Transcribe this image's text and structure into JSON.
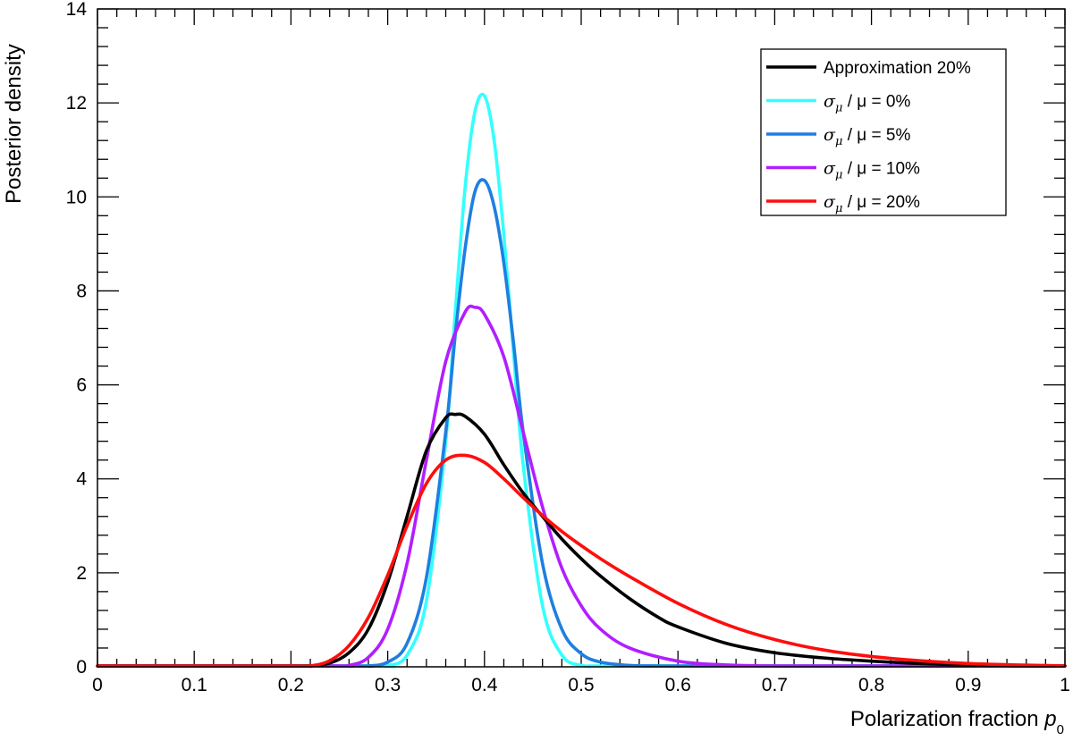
{
  "chart_data": {
    "type": "line",
    "xlabel": "Polarization fraction p",
    "xlabel_main": "Polarization fraction ",
    "xlabel_var": "p",
    "xlabel_sub": "0",
    "ylabel": "Posterior density",
    "xlim": [
      0,
      1
    ],
    "ylim": [
      0,
      14
    ],
    "x_ticks": [
      "0",
      "0.1",
      "0.2",
      "0.3",
      "0.4",
      "0.5",
      "0.6",
      "0.7",
      "0.8",
      "0.9",
      "1"
    ],
    "y_ticks": [
      "0",
      "2",
      "4",
      "6",
      "8",
      "10",
      "12",
      "14"
    ],
    "legend_position": "top-right",
    "legend_fontsize": 19,
    "series": [
      {
        "name": "Approximation 20%",
        "label_parts": {
          "text": "Approximation 20%"
        },
        "color": "#000000",
        "x": [
          0.2,
          0.22,
          0.24,
          0.26,
          0.28,
          0.3,
          0.32,
          0.34,
          0.36,
          0.37,
          0.38,
          0.4,
          0.42,
          0.44,
          0.46,
          0.48,
          0.5,
          0.52,
          0.55,
          0.58,
          0.6,
          0.65,
          0.7,
          0.75,
          0.8,
          0.85,
          0.9,
          0.95,
          1.0
        ],
        "y": [
          0.0,
          0.02,
          0.08,
          0.3,
          0.8,
          1.8,
          3.2,
          4.6,
          5.3,
          5.37,
          5.33,
          4.95,
          4.3,
          3.7,
          3.2,
          2.72,
          2.3,
          1.93,
          1.45,
          1.05,
          0.85,
          0.5,
          0.3,
          0.19,
          0.12,
          0.07,
          0.04,
          0.02,
          0.01
        ]
      },
      {
        "name": "σ_μ/μ = 0%",
        "label_parts": {
          "sigma": "σ",
          "sub": "μ",
          "rest": " / μ  = 0%"
        },
        "color": "#33ffff",
        "x": [
          0.28,
          0.3,
          0.32,
          0.34,
          0.36,
          0.37,
          0.38,
          0.39,
          0.4,
          0.41,
          0.42,
          0.43,
          0.44,
          0.46,
          0.48,
          0.5,
          0.52,
          0.55
        ],
        "y": [
          0.0,
          0.03,
          0.25,
          1.4,
          4.8,
          7.6,
          10.2,
          11.8,
          12.15,
          11.2,
          9.2,
          6.7,
          4.3,
          1.3,
          0.25,
          0.03,
          0.0,
          0.0
        ]
      },
      {
        "name": "σ_μ/μ = 5%",
        "label_parts": {
          "sigma": "σ",
          "sub": "μ",
          "rest": " / μ  = 5%"
        },
        "color": "#1e7fe0",
        "x": [
          0.26,
          0.28,
          0.3,
          0.32,
          0.34,
          0.36,
          0.37,
          0.38,
          0.39,
          0.4,
          0.41,
          0.42,
          0.43,
          0.44,
          0.46,
          0.48,
          0.5,
          0.52,
          0.55,
          0.58,
          0.6
        ],
        "y": [
          0.0,
          0.02,
          0.1,
          0.5,
          1.9,
          5.0,
          7.1,
          8.9,
          10.1,
          10.35,
          9.8,
          8.6,
          6.9,
          5.0,
          2.2,
          0.8,
          0.28,
          0.1,
          0.03,
          0.01,
          0.0
        ]
      },
      {
        "name": "σ_μ/μ = 10%",
        "label_parts": {
          "sigma": "σ",
          "sub": "μ",
          "rest": " / μ  = 10%"
        },
        "color": "#b21eff",
        "x": [
          0.24,
          0.26,
          0.28,
          0.3,
          0.32,
          0.34,
          0.36,
          0.38,
          0.39,
          0.4,
          0.42,
          0.44,
          0.46,
          0.48,
          0.5,
          0.52,
          0.55,
          0.6,
          0.65,
          0.7,
          0.75
        ],
        "y": [
          0.0,
          0.03,
          0.2,
          0.8,
          2.2,
          4.4,
          6.5,
          7.55,
          7.65,
          7.5,
          6.6,
          5.0,
          3.4,
          2.1,
          1.3,
          0.8,
          0.4,
          0.12,
          0.04,
          0.01,
          0.0
        ]
      },
      {
        "name": "σ_μ/μ = 20%",
        "label_parts": {
          "sigma": "σ",
          "sub": "μ",
          "rest": " / μ  = 20%"
        },
        "color": "#ff0d0d",
        "x": [
          0.2,
          0.22,
          0.24,
          0.26,
          0.28,
          0.3,
          0.32,
          0.34,
          0.36,
          0.38,
          0.4,
          0.42,
          0.44,
          0.46,
          0.48,
          0.5,
          0.52,
          0.55,
          0.6,
          0.65,
          0.7,
          0.75,
          0.8,
          0.85,
          0.9,
          0.95,
          1.0
        ],
        "y": [
          0.0,
          0.02,
          0.13,
          0.45,
          1.05,
          1.95,
          3.0,
          3.9,
          4.4,
          4.5,
          4.35,
          4.0,
          3.6,
          3.22,
          2.88,
          2.58,
          2.3,
          1.92,
          1.35,
          0.9,
          0.58,
          0.36,
          0.22,
          0.13,
          0.07,
          0.04,
          0.02
        ]
      }
    ]
  }
}
